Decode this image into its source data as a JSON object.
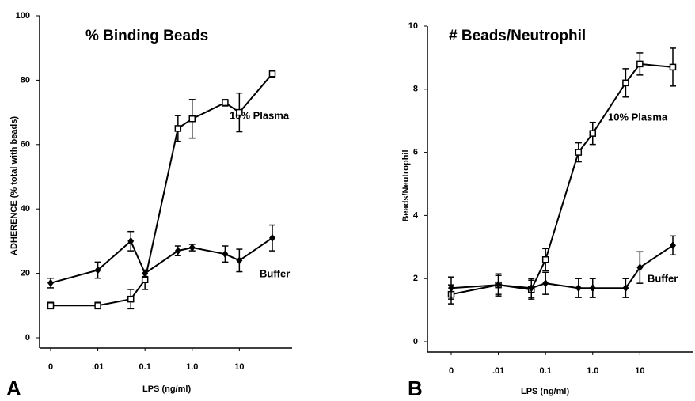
{
  "chart_data": [
    {
      "type": "line",
      "title": "% Binding Beads",
      "panel_label": "A",
      "y_label": "ADHERENCE (% total with beads)",
      "x_label": "LPS   (ng/ml)",
      "x": [
        0.001,
        0.01,
        0.05,
        0.1,
        0.5,
        1,
        5,
        10,
        50
      ],
      "log_x": true,
      "xlim": [
        0.001,
        50
      ],
      "xticks": [
        {
          "value": 0.001,
          "label": "0"
        },
        {
          "value": 0.01,
          "label": ".01"
        },
        {
          "value": 0.1,
          "label": "0.1"
        },
        {
          "value": 1,
          "label": "1.0"
        },
        10
      ],
      "ylim": [
        0,
        100
      ],
      "yticks": [
        0,
        20,
        40,
        60,
        80,
        100
      ],
      "annotations": [
        "10%  Plasma",
        "Buffer"
      ],
      "series": [
        {
          "name": "10% Plasma",
          "color": "#000000",
          "marker": "square",
          "values": [
            10,
            10,
            12,
            18,
            65,
            68,
            73,
            70,
            82
          ],
          "errors": [
            1,
            1,
            3,
            3,
            4,
            6,
            1,
            6,
            1
          ]
        },
        {
          "name": "Buffer",
          "color": "#000000",
          "marker": "diamond",
          "values": [
            17,
            21,
            30,
            20,
            27,
            28,
            26,
            24,
            31
          ],
          "errors": [
            1.5,
            2.5,
            3,
            1,
            1.5,
            1,
            2.5,
            3.5,
            4
          ]
        }
      ]
    },
    {
      "type": "line",
      "title": "#  Beads/Neutrophil",
      "panel_label": "B",
      "y_label": "Beads/Neutrophil",
      "x_label": "LPS (ng/ml)",
      "x": [
        0.001,
        0.01,
        0.05,
        0.1,
        0.5,
        1,
        5,
        10,
        50
      ],
      "log_x": true,
      "xlim": [
        0.001,
        50
      ],
      "xticks": [
        {
          "value": 0.001,
          "label": "0"
        },
        {
          "value": 0.01,
          "label": ".01"
        },
        {
          "value": 0.1,
          "label": "0.1"
        },
        {
          "value": 1,
          "label": "1.0"
        },
        10
      ],
      "ylim": [
        0,
        10
      ],
      "yticks": [
        0,
        2,
        4,
        6,
        8,
        10
      ],
      "annotations": [
        "10%  Plasma",
        "Buffer"
      ],
      "series": [
        {
          "name": "10% Plasma",
          "color": "#000000",
          "marker": "square",
          "values": [
            1.5,
            1.8,
            1.65,
            2.6,
            6.0,
            6.6,
            8.2,
            8.8,
            8.7
          ],
          "errors": [
            0.3,
            0.3,
            0.3,
            0.35,
            0.3,
            0.35,
            0.45,
            0.35,
            0.6
          ]
        },
        {
          "name": "Buffer",
          "color": "#000000",
          "marker": "diamond",
          "values": [
            1.7,
            1.8,
            1.7,
            1.85,
            1.7,
            1.7,
            1.7,
            2.35,
            3.05
          ],
          "errors": [
            0.35,
            0.35,
            0.3,
            0.35,
            0.3,
            0.3,
            0.3,
            0.5,
            0.3
          ]
        }
      ]
    }
  ]
}
